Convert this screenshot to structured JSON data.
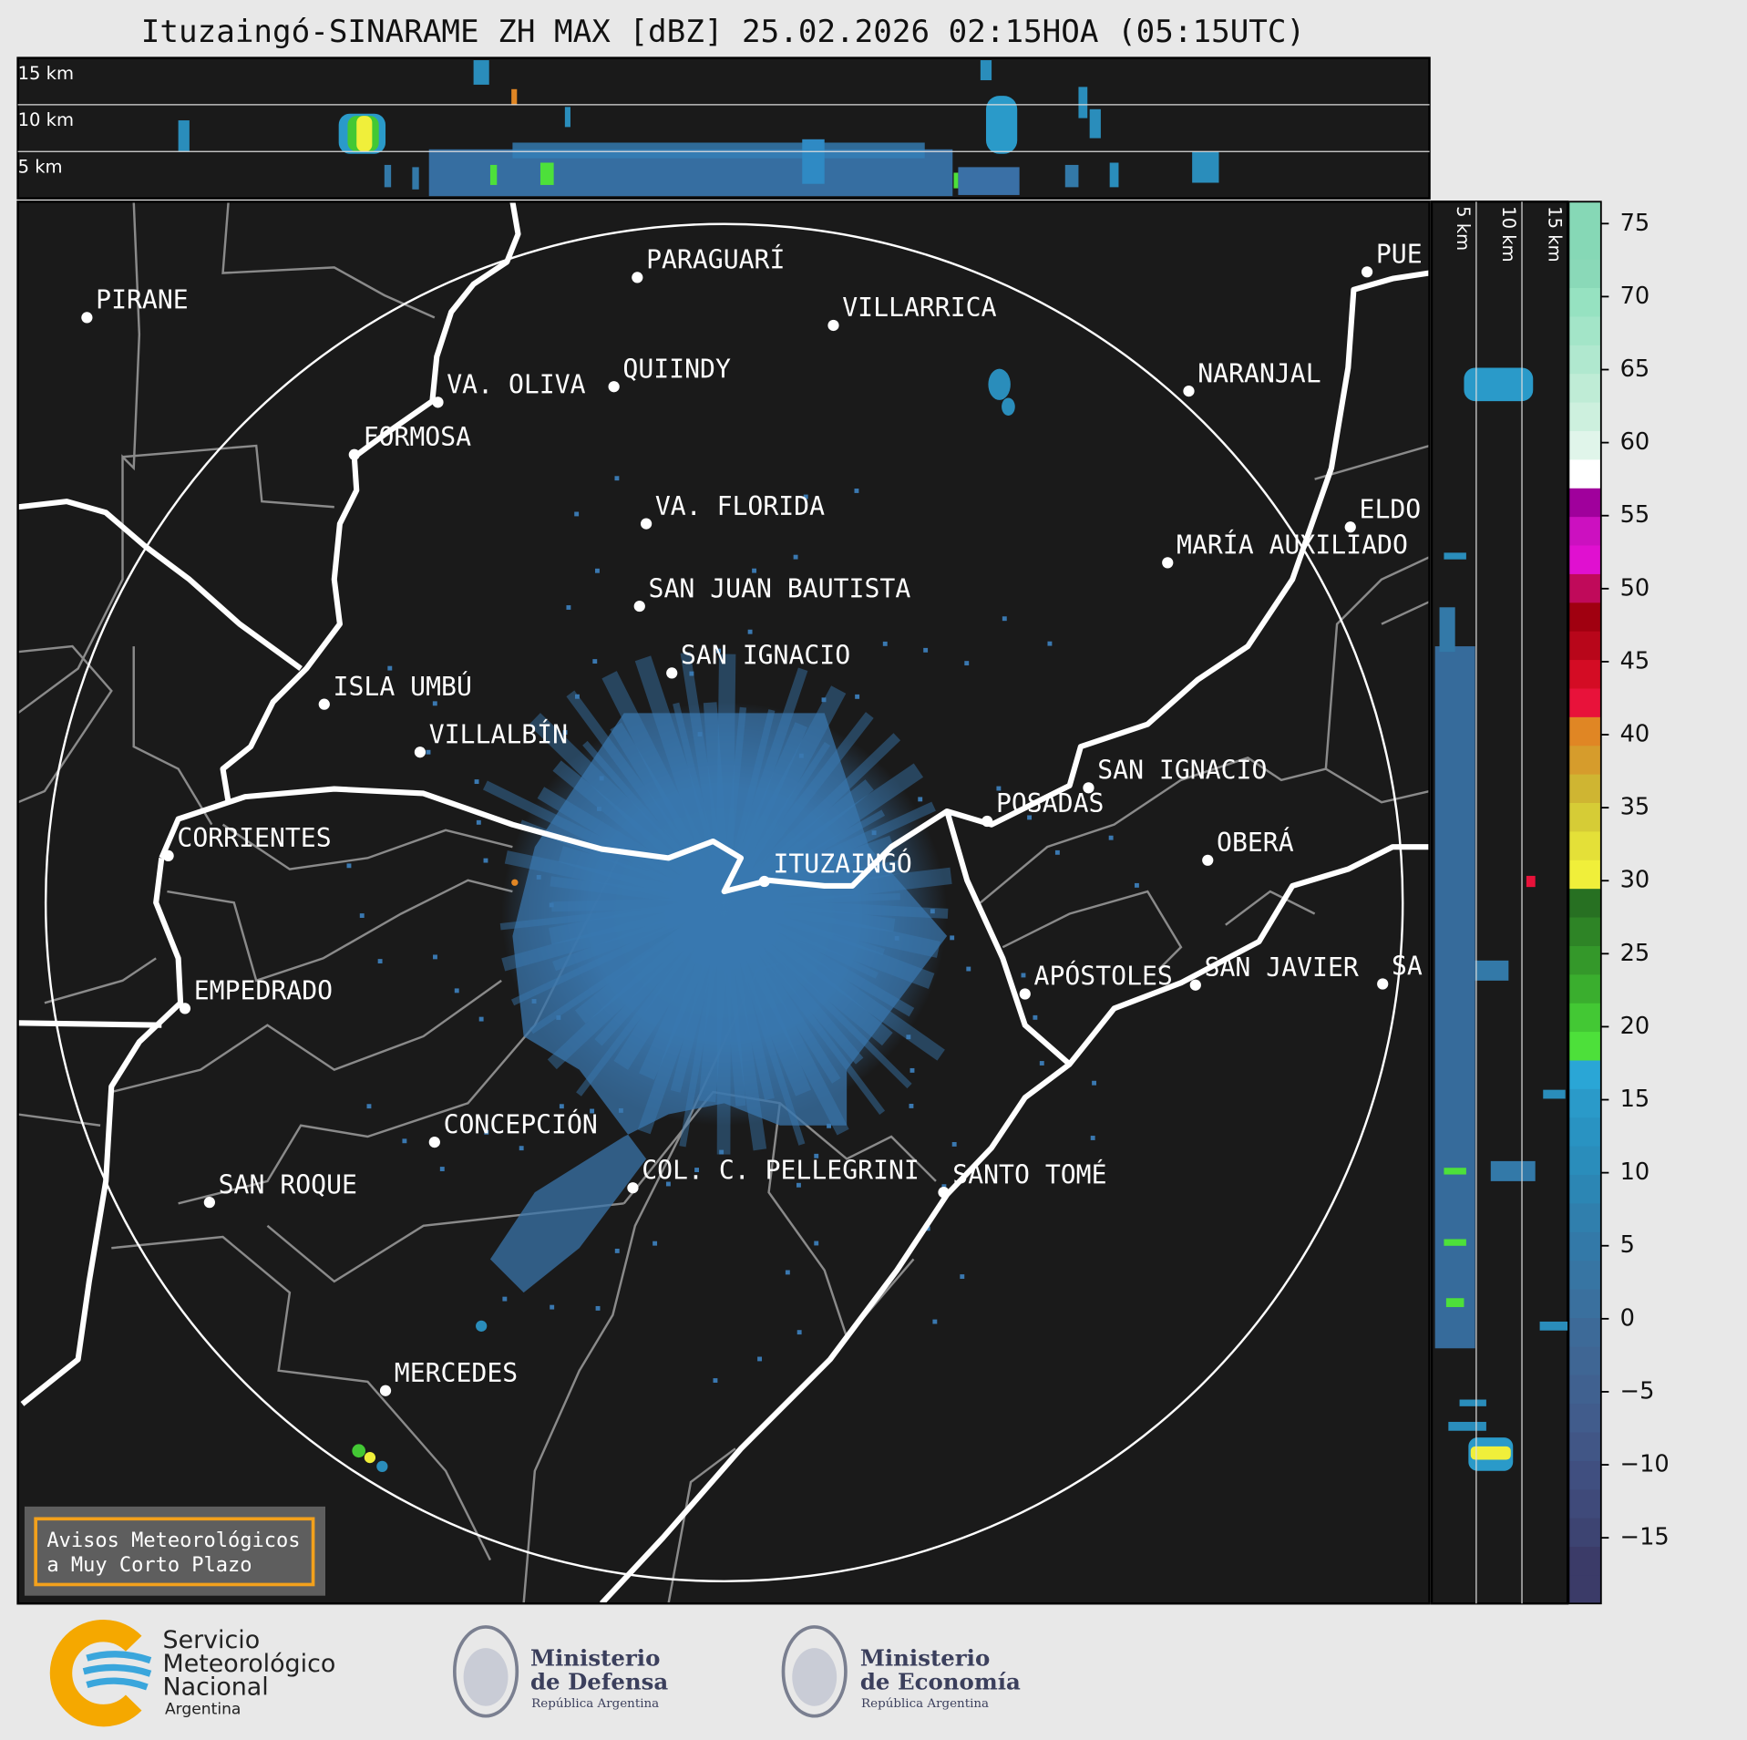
{
  "title": "Ituzaingó-SINARAME ZH MAX [dBZ] 25.02.2026 02:15HOA (05:15UTC)",
  "top_panel": {
    "labels": [
      "15 km",
      "10 km",
      "5 km"
    ]
  },
  "side_panel": {
    "labels": [
      "5 km",
      "10 km",
      "15 km"
    ]
  },
  "cities": [
    "PARAGUARÍ",
    "VILLARRICA",
    "PIRANE",
    "QUIINDY",
    "VA. OLIVA",
    "FORMOSA",
    "NARANJAL",
    "VA. FLORIDA",
    "ELDO",
    "MARÍA AUXILIADO",
    "SAN JUAN BAUTISTA",
    "SAN IGNACIO",
    "ISLA UMBÚ",
    "VILLALBÍN",
    "SAN IGNACIO",
    "POSADAS",
    "CORRIENTES",
    "ITUZAINGÓ",
    "OBERÁ",
    "APÓSTOLES",
    "SAN JAVIER",
    "SA",
    "EMPEDRADO",
    "CONCEPCIÓN",
    "COL. C. PELLEGRINI",
    "SANTO TOMÉ",
    "SAN ROQUE",
    "MERCEDES",
    "PUE"
  ],
  "colorbar": {
    "range": [
      -19.5,
      76.5
    ],
    "ticks": [
      75,
      70,
      65,
      60,
      55,
      50,
      45,
      40,
      35,
      30,
      25,
      20,
      15,
      10,
      5,
      0,
      {
        "value": -5,
        "label": "−5"
      },
      {
        "value": -10,
        "label": "−10"
      },
      {
        "value": -15,
        "label": "−15"
      }
    ],
    "colors": [
      "#3b3b68",
      "#3b3b68",
      "#3d4472",
      "#3f4a7a",
      "#404f80",
      "#415686",
      "#415c8c",
      "#406190",
      "#3f6694",
      "#3d6a98",
      "#3a709e",
      "#3775a3",
      "#3379a8",
      "#307fad",
      "#2c86b4",
      "#2a8dbb",
      "#2993c2",
      "#2a9ac9",
      "#2aa6d6",
      "#4de03a",
      "#43c834",
      "#3aae2e",
      "#34982a",
      "#2e8426",
      "#277022",
      "#f0ef3a",
      "#e4e038",
      "#d6cc36",
      "#cfb532",
      "#d69c2c",
      "#e08624",
      "#e8123a",
      "#d40c24",
      "#b8061a",
      "#a00010",
      "#c00a5a",
      "#e010d0",
      "#cc10c0",
      "#a0009c",
      "#ffffff",
      "#e0f5ea",
      "#cdf0de",
      "#bfecd6",
      "#b0e8cf",
      "#a3e5c8",
      "#96e2c1",
      "#8ad9b8",
      "#86d8b6",
      "#86d8b6"
    ]
  },
  "notice": [
    "Avisos Meteorológicos",
    "a Muy Corto Plazo"
  ],
  "footer": {
    "smn": [
      "Servicio",
      "Meteorológico",
      "Nacional",
      "Argentina"
    ],
    "defensa": [
      "Ministerio",
      "de Defensa",
      "República Argentina"
    ],
    "economia": [
      "Ministerio",
      "de Economía",
      "República Argentina"
    ]
  }
}
